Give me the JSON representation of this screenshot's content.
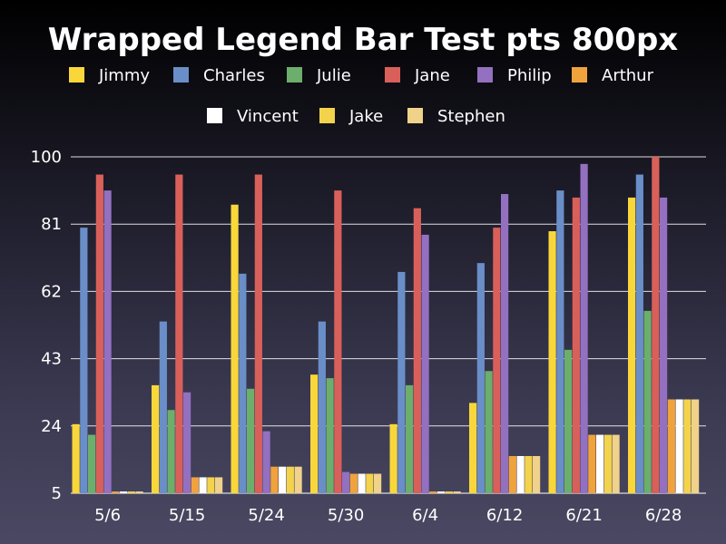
{
  "chart_data": {
    "type": "bar",
    "title": "Wrapped Legend Bar Test pts 800px",
    "xlabel": "",
    "ylabel": "",
    "ylim": [
      5,
      100
    ],
    "yticks": [
      5,
      24,
      43,
      62,
      81,
      100
    ],
    "grid": true,
    "legend_position": "top",
    "categories": [
      "5/6",
      "5/15",
      "5/24",
      "5/30",
      "6/4",
      "6/12",
      "6/21",
      "6/28"
    ],
    "series": [
      {
        "name": "Jimmy",
        "color": "#f9d73a",
        "values": [
          24.5,
          35.5,
          86.5,
          38.5,
          24.5,
          30.5,
          79,
          88.5
        ]
      },
      {
        "name": "Charles",
        "color": "#6a8ec8",
        "values": [
          80,
          53.5,
          67,
          53.5,
          67.5,
          70,
          90.5,
          95
        ]
      },
      {
        "name": "Julie",
        "color": "#6cae6c",
        "values": [
          21.5,
          28.5,
          34.5,
          37.5,
          35.5,
          39.5,
          45.5,
          56.5
        ]
      },
      {
        "name": "Jane",
        "color": "#d9605a",
        "values": [
          95,
          95,
          95,
          90.5,
          85.5,
          80,
          88.5,
          100
        ]
      },
      {
        "name": "Philip",
        "color": "#9370c0",
        "values": [
          90.5,
          33.5,
          22.5,
          11,
          78,
          89.5,
          98,
          88.5
        ]
      },
      {
        "name": "Arthur",
        "color": "#f0a33c",
        "values": [
          5.5,
          9.5,
          12.5,
          10.5,
          5.5,
          15.5,
          21.5,
          31.5
        ]
      },
      {
        "name": "Vincent",
        "color": "#ffffff",
        "values": [
          5.5,
          9.5,
          12.5,
          10.5,
          5.5,
          15.5,
          21.5,
          31.5
        ]
      },
      {
        "name": "Jake",
        "color": "#f3d34c",
        "values": [
          5.5,
          9.5,
          12.5,
          10.5,
          5.5,
          15.5,
          21.5,
          31.5
        ]
      },
      {
        "name": "Stephen",
        "color": "#f1d28a",
        "values": [
          5.5,
          9.5,
          12.5,
          10.5,
          5.5,
          15.5,
          21.5,
          31.5
        ]
      }
    ]
  }
}
